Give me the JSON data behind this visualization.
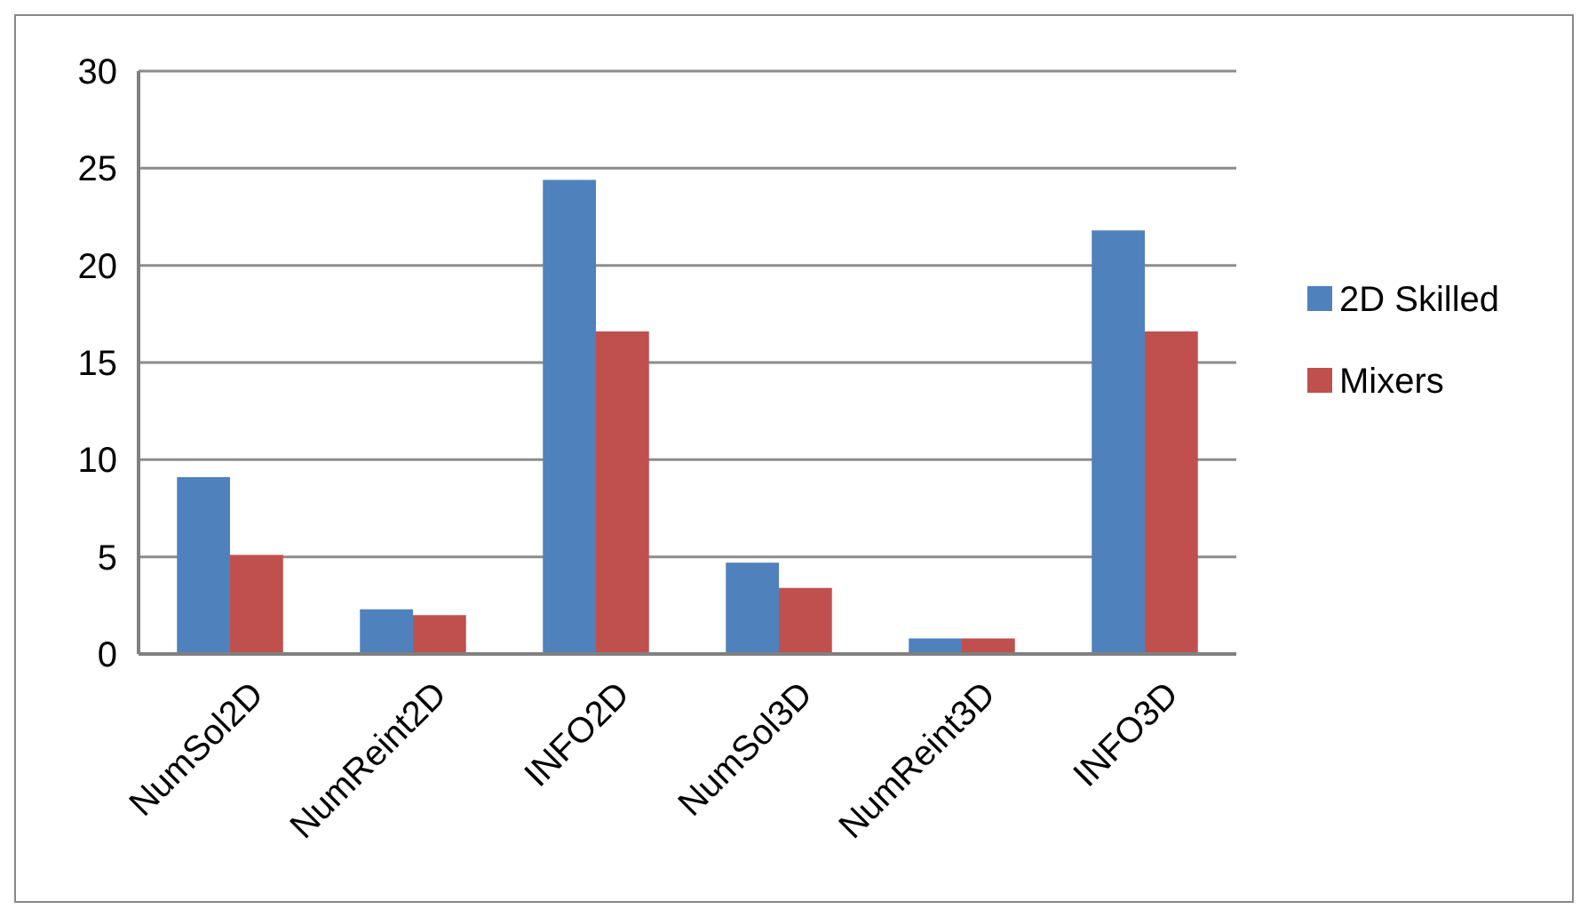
{
  "chart_data": {
    "type": "bar",
    "categories": [
      "NumSol2D",
      "NumReint2D",
      "INFO2D",
      "NumSol3D",
      "NumReint3D",
      "INFO3D"
    ],
    "series": [
      {
        "name": "2D Skilled",
        "color": "#4f81bd",
        "values": [
          9.1,
          2.3,
          24.4,
          4.7,
          0.8,
          21.8
        ]
      },
      {
        "name": "Mixers",
        "color": "#c0504d",
        "values": [
          5.1,
          2.0,
          16.6,
          3.4,
          0.8,
          16.6
        ]
      }
    ],
    "ylim": [
      0,
      30
    ],
    "yticks": [
      0,
      5,
      10,
      15,
      20,
      25,
      30
    ],
    "grid": "y",
    "legend": "right"
  }
}
